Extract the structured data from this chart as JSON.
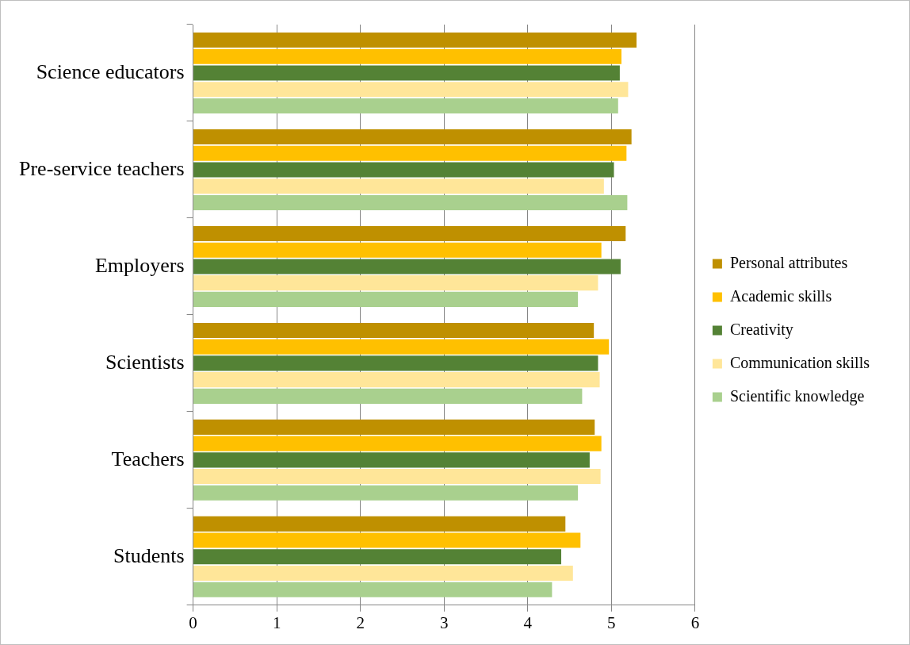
{
  "chart_data": {
    "type": "bar",
    "orientation": "horizontal",
    "categories": [
      "Science educators",
      "Pre-service teachers",
      "Employers",
      "Scientists",
      "Teachers",
      "Students"
    ],
    "series": [
      {
        "name": "Personal attributes",
        "color": "#bf9000",
        "values": [
          5.3,
          5.24,
          5.17,
          4.79,
          4.8,
          4.45
        ]
      },
      {
        "name": "Academic skills",
        "color": "#ffc000",
        "values": [
          5.12,
          5.18,
          4.88,
          4.97,
          4.88,
          4.63
        ]
      },
      {
        "name": "Creativity",
        "color": "#548235",
        "values": [
          5.1,
          5.03,
          5.11,
          4.84,
          4.74,
          4.4
        ]
      },
      {
        "name": "Communication skills",
        "color": "#ffe699",
        "values": [
          5.2,
          4.91,
          4.84,
          4.86,
          4.87,
          4.54
        ]
      },
      {
        "name": "Scientific knowledge",
        "color": "#a9d08e",
        "values": [
          5.08,
          5.19,
          4.6,
          4.65,
          4.6,
          4.29
        ]
      }
    ],
    "xlim": [
      0,
      6
    ],
    "xticks": [
      0,
      1,
      2,
      3,
      4,
      5,
      6
    ],
    "grid": "x",
    "legend": "right"
  }
}
